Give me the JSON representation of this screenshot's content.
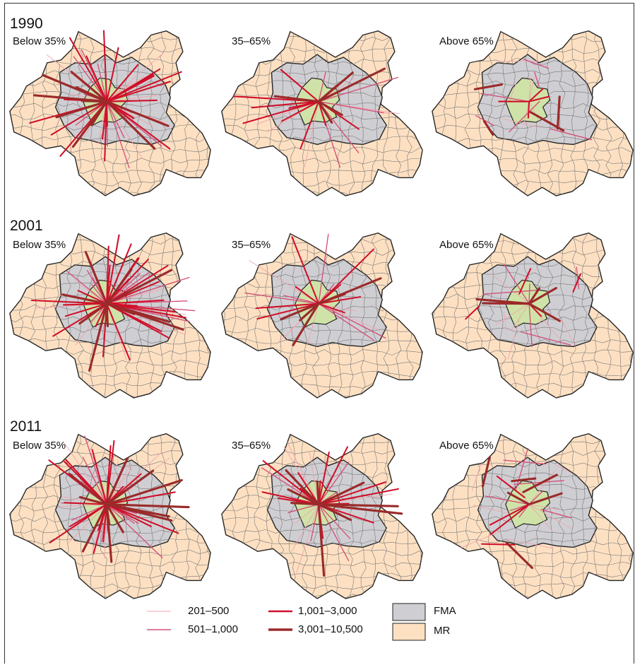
{
  "panels": [
    {
      "year": "1990",
      "categories": [
        "Below 35%",
        "35–65%",
        "Above 65%"
      ]
    },
    {
      "year": "2001",
      "categories": [
        "Below 35%",
        "35–65%",
        "Above 65%"
      ]
    },
    {
      "year": "2011",
      "categories": [
        "Below 35%",
        "35–65%",
        "Above 65%"
      ]
    }
  ],
  "legend": {
    "flows": [
      {
        "label": "201–500",
        "color": "#f2a3ad"
      },
      {
        "label": "501–1,000",
        "color": "#d6507a"
      },
      {
        "label": "1,001–3,000",
        "color": "#d0102a"
      },
      {
        "label": "3,001–10,500",
        "color": "#9b2a2a"
      }
    ],
    "areas": [
      {
        "label": "FMA",
        "color": "#cfcfd3"
      },
      {
        "label": "MR",
        "color": "#fde0c2"
      }
    ]
  },
  "colors": {
    "core": "#cfe3a8",
    "fma": "#cfcfd3",
    "mr": "#fde0c2",
    "outline": "#222222",
    "municipal_border": "#777777"
  }
}
